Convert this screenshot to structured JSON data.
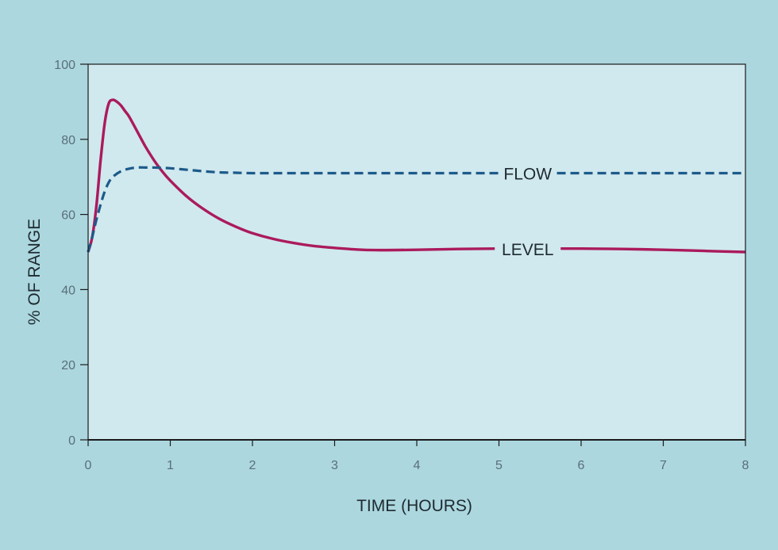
{
  "chart_data": {
    "type": "line",
    "title": "",
    "xlabel": "TIME (HOURS)",
    "ylabel": "% OF RANGE",
    "xlim": [
      0,
      8
    ],
    "ylim": [
      0,
      100
    ],
    "x_ticks": [
      "0",
      "1",
      "2",
      "3",
      "4",
      "5",
      "6",
      "7",
      "8"
    ],
    "y_ticks": [
      "0",
      "20",
      "40",
      "60",
      "80",
      "100"
    ],
    "grid": false,
    "legend": "none (series labelled inline on the lines)",
    "plot_background": "#d0e9ee",
    "series": [
      {
        "name": "FLOW",
        "label_at": [
          5.35,
          71
        ],
        "color": "#1d5a8a",
        "style": "dashed",
        "x": [
          0,
          0.05,
          0.1,
          0.15,
          0.2,
          0.25,
          0.3,
          0.4,
          0.5,
          0.6,
          0.7,
          0.8,
          0.9,
          1.0,
          1.2,
          1.4,
          1.6,
          1.8,
          2.0,
          2.5,
          3,
          4,
          5,
          6,
          7,
          8
        ],
        "y": [
          50,
          54,
          58.5,
          62.5,
          66,
          68.5,
          70,
          71.5,
          72.2,
          72.5,
          72.5,
          72.5,
          72.4,
          72.3,
          71.9,
          71.5,
          71.2,
          71.1,
          71,
          71,
          71,
          71,
          71,
          71,
          71,
          71
        ]
      },
      {
        "name": "LEVEL",
        "label_at": [
          5.35,
          50.8
        ],
        "color": "#ab1a5d",
        "style": "solid",
        "x": [
          0,
          0.05,
          0.1,
          0.15,
          0.2,
          0.25,
          0.3,
          0.35,
          0.4,
          0.45,
          0.5,
          0.6,
          0.7,
          0.8,
          0.9,
          1.0,
          1.2,
          1.4,
          1.6,
          1.8,
          2.0,
          2.25,
          2.5,
          2.75,
          3.0,
          3.25,
          3.5,
          4.0,
          4.5,
          5.0,
          5.5,
          6.0,
          6.5,
          7.0,
          7.5,
          8.0
        ],
        "y": [
          50,
          54,
          62,
          74,
          84,
          89.5,
          90.5,
          90,
          89,
          87.5,
          86,
          82,
          78,
          74.5,
          71.5,
          69,
          64.8,
          61.5,
          58.8,
          56.7,
          55,
          53.5,
          52.4,
          51.6,
          51.1,
          50.7,
          50.5,
          50.6,
          50.8,
          50.9,
          50.9,
          50.9,
          50.8,
          50.6,
          50.3,
          50
        ]
      }
    ]
  }
}
